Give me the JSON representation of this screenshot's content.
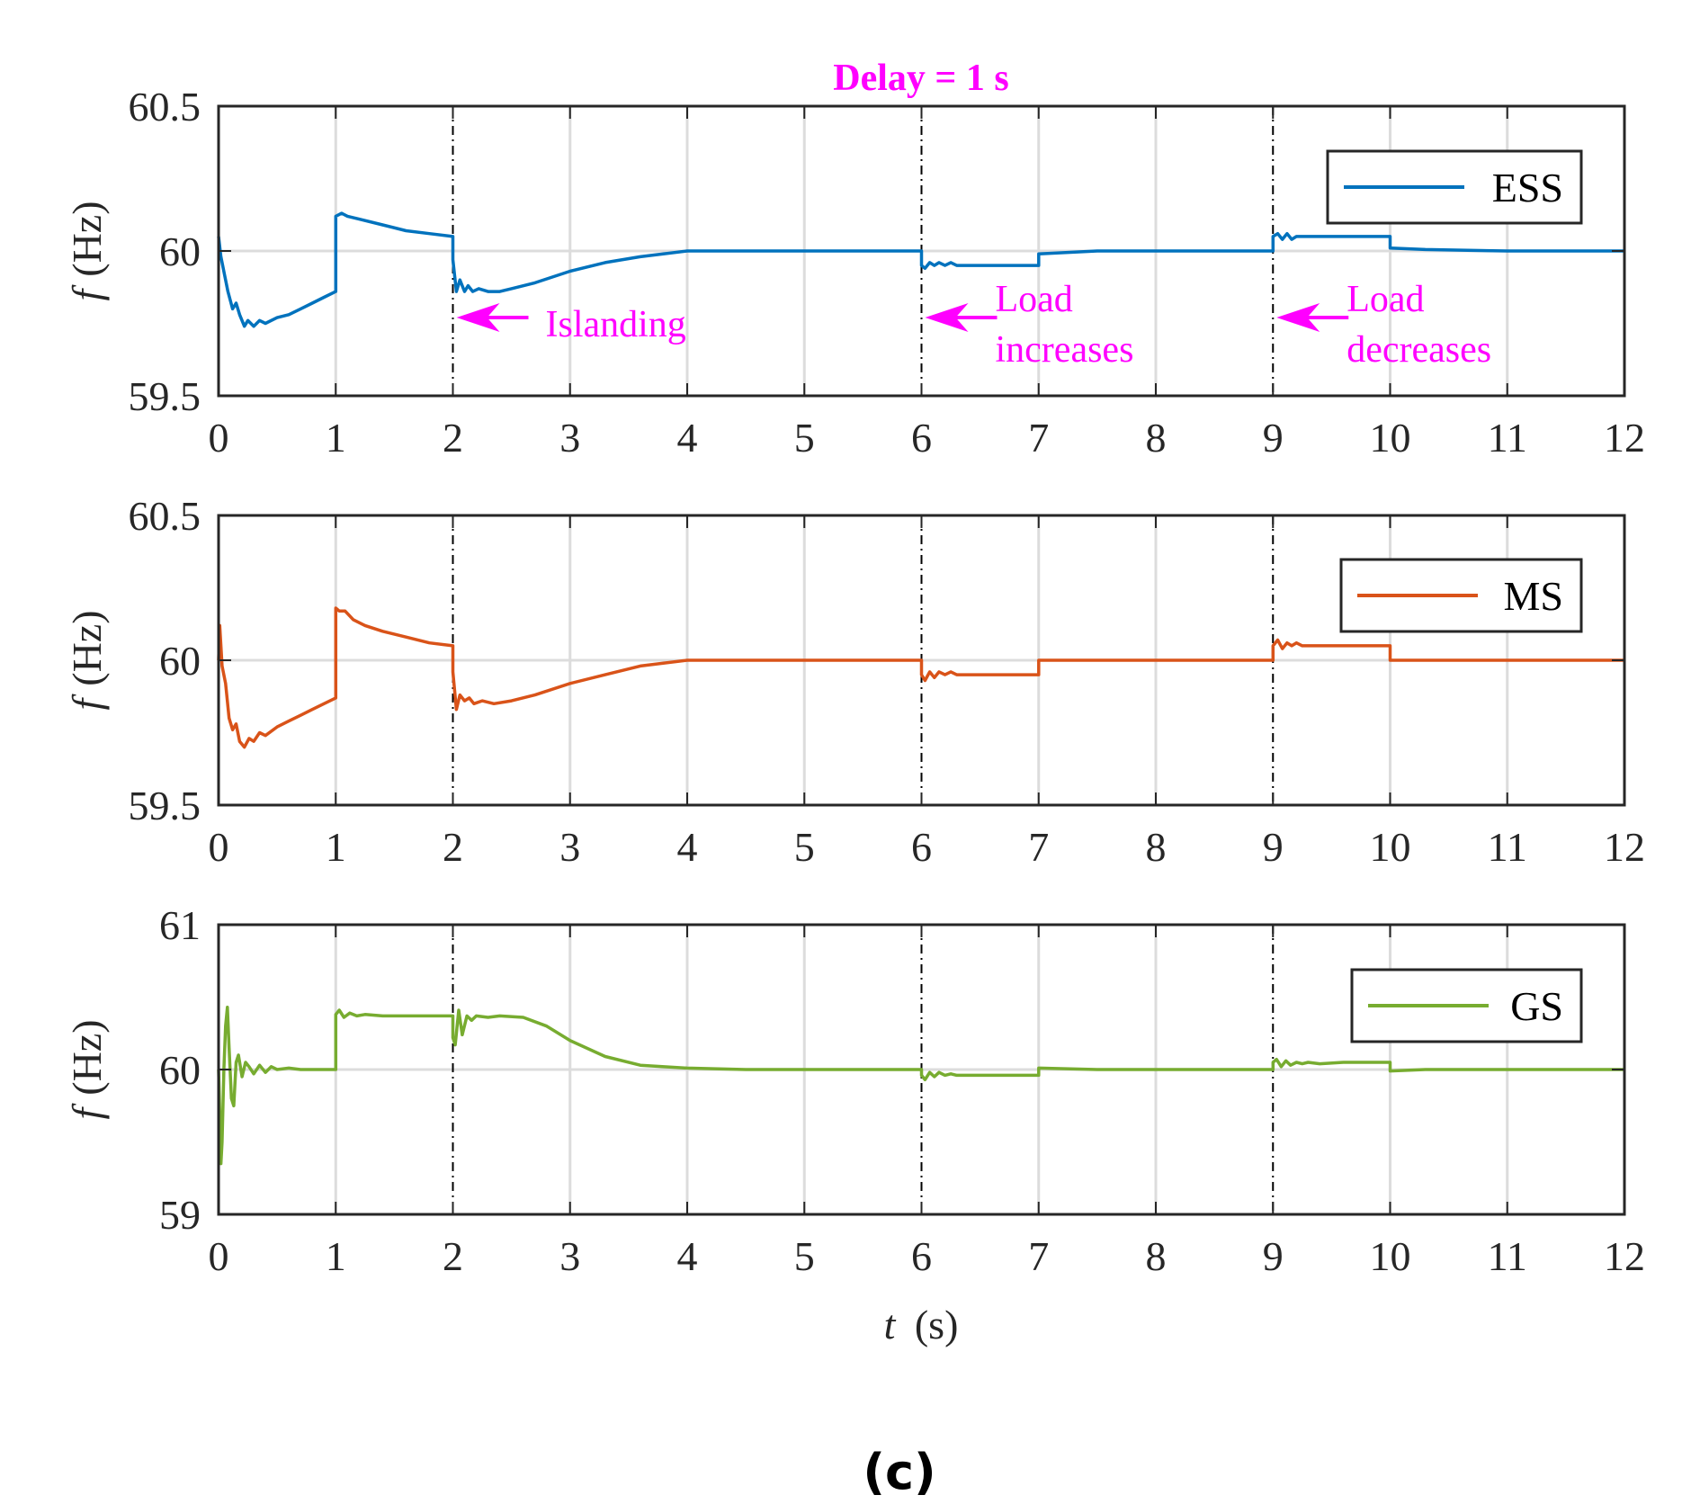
{
  "chart_data": [
    {
      "type": "line",
      "title": "Delay = 1 s",
      "xlabel": "",
      "ylabel_italic": "f",
      "ylabel_unit": "(Hz)",
      "xlim": [
        0,
        12
      ],
      "ylim": [
        59.5,
        60.5
      ],
      "xticks": [
        "0",
        "1",
        "2",
        "3",
        "4",
        "5",
        "6",
        "7",
        "8",
        "9",
        "10",
        "11",
        "12"
      ],
      "yticks": [
        "59.5",
        "60",
        "60.5"
      ],
      "ytick_values": [
        59.5,
        60,
        60.5
      ],
      "event_lines": [
        2,
        6,
        9
      ],
      "grid": true,
      "legend": "top-right",
      "series": [
        {
          "name": "ESS",
          "color": "#0072BD",
          "x": [
            0,
            0.02,
            0.05,
            0.08,
            0.12,
            0.15,
            0.18,
            0.22,
            0.25,
            0.3,
            0.35,
            0.4,
            0.5,
            0.6,
            0.7,
            0.8,
            0.9,
            1.0,
            1.0,
            1.05,
            1.1,
            1.2,
            1.4,
            1.6,
            1.8,
            2.0,
            2.0,
            2.03,
            2.06,
            2.1,
            2.13,
            2.17,
            2.22,
            2.3,
            2.4,
            2.5,
            2.7,
            3.0,
            3.3,
            3.6,
            4.0,
            4.5,
            5.0,
            6.0,
            6.0,
            6.03,
            6.07,
            6.11,
            6.15,
            6.2,
            6.25,
            6.3,
            6.4,
            6.6,
            7.0,
            7.0,
            7.5,
            8.0,
            9.0,
            9.0,
            9.04,
            9.08,
            9.12,
            9.16,
            9.2,
            9.25,
            9.3,
            9.4,
            9.6,
            10.0,
            10.0,
            10.3,
            11.0,
            12.0
          ],
          "y": [
            60.05,
            59.98,
            59.92,
            59.86,
            59.8,
            59.82,
            59.78,
            59.74,
            59.76,
            59.74,
            59.76,
            59.75,
            59.77,
            59.78,
            59.8,
            59.82,
            59.84,
            59.86,
            60.12,
            60.13,
            60.12,
            60.11,
            60.09,
            60.07,
            60.06,
            60.05,
            59.97,
            59.86,
            59.9,
            59.86,
            59.88,
            59.86,
            59.87,
            59.86,
            59.86,
            59.87,
            59.89,
            59.93,
            59.96,
            59.98,
            60.0,
            60.0,
            60.0,
            60.0,
            59.95,
            59.94,
            59.96,
            59.95,
            59.96,
            59.95,
            59.96,
            59.95,
            59.95,
            59.95,
            59.95,
            59.99,
            60.0,
            60.0,
            60.0,
            60.05,
            60.06,
            60.04,
            60.06,
            60.04,
            60.05,
            60.05,
            60.05,
            60.05,
            60.05,
            60.05,
            60.01,
            60.005,
            60.0,
            60.0
          ]
        }
      ],
      "annotations": [
        {
          "text": "Islanding",
          "x": 2
        },
        {
          "text": "Load",
          "text2": "increases",
          "x": 6
        },
        {
          "text": "Load",
          "text2": "decreases",
          "x": 9
        }
      ]
    },
    {
      "type": "line",
      "xlabel": "",
      "ylabel_italic": "f",
      "ylabel_unit": "(Hz)",
      "xlim": [
        0,
        12
      ],
      "ylim": [
        59.5,
        60.5
      ],
      "xticks": [
        "0",
        "1",
        "2",
        "3",
        "4",
        "5",
        "6",
        "7",
        "8",
        "9",
        "10",
        "11",
        "12"
      ],
      "yticks": [
        "59.5",
        "60",
        "60.5"
      ],
      "ytick_values": [
        59.5,
        60,
        60.5
      ],
      "event_lines": [
        2,
        6,
        9
      ],
      "grid": true,
      "legend": "top-right",
      "series": [
        {
          "name": "MS",
          "color": "#D95319",
          "x": [
            0,
            0.01,
            0.03,
            0.06,
            0.09,
            0.12,
            0.15,
            0.18,
            0.22,
            0.26,
            0.3,
            0.35,
            0.4,
            0.5,
            0.6,
            0.7,
            0.8,
            0.9,
            1.0,
            1.0,
            1.03,
            1.08,
            1.15,
            1.25,
            1.4,
            1.6,
            1.8,
            2.0,
            2.0,
            2.03,
            2.06,
            2.1,
            2.14,
            2.18,
            2.25,
            2.35,
            2.5,
            2.7,
            3.0,
            3.3,
            3.6,
            4.0,
            4.5,
            5.0,
            6.0,
            6.0,
            6.03,
            6.07,
            6.11,
            6.15,
            6.2,
            6.25,
            6.3,
            6.4,
            6.6,
            7.0,
            7.0,
            7.5,
            8.0,
            9.0,
            9.0,
            9.04,
            9.08,
            9.12,
            9.16,
            9.2,
            9.25,
            9.3,
            9.4,
            9.6,
            10.0,
            10.0,
            10.3,
            11.0,
            12.0
          ],
          "y": [
            60.0,
            60.12,
            59.98,
            59.92,
            59.8,
            59.76,
            59.78,
            59.72,
            59.7,
            59.73,
            59.72,
            59.75,
            59.74,
            59.77,
            59.79,
            59.81,
            59.83,
            59.85,
            59.87,
            60.18,
            60.17,
            60.17,
            60.14,
            60.12,
            60.1,
            60.08,
            60.06,
            60.05,
            59.96,
            59.83,
            59.88,
            59.86,
            59.87,
            59.85,
            59.86,
            59.85,
            59.86,
            59.88,
            59.92,
            59.95,
            59.98,
            60.0,
            60.0,
            60.0,
            60.0,
            59.95,
            59.93,
            59.96,
            59.94,
            59.96,
            59.95,
            59.96,
            59.95,
            59.95,
            59.95,
            59.95,
            60.0,
            60.0,
            60.0,
            60.0,
            60.05,
            60.07,
            60.04,
            60.06,
            60.05,
            60.06,
            60.05,
            60.05,
            60.05,
            60.05,
            60.05,
            60.0,
            60.0,
            60.0,
            60.0
          ]
        }
      ]
    },
    {
      "type": "line",
      "xlabel_italic": "t",
      "xlabel_unit": "(s)",
      "ylabel_italic": "f",
      "ylabel_unit": "(Hz)",
      "xlim": [
        0,
        12
      ],
      "ylim": [
        59,
        61
      ],
      "xticks": [
        "0",
        "1",
        "2",
        "3",
        "4",
        "5",
        "6",
        "7",
        "8",
        "9",
        "10",
        "11",
        "12"
      ],
      "yticks": [
        "59",
        "60",
        "61"
      ],
      "ytick_values": [
        59,
        60,
        61
      ],
      "event_lines": [
        2,
        6,
        9
      ],
      "grid": true,
      "legend": "top-right",
      "series": [
        {
          "name": "GS",
          "color": "#77AC30",
          "x": [
            0,
            0.01,
            0.02,
            0.03,
            0.045,
            0.06,
            0.075,
            0.09,
            0.11,
            0.13,
            0.15,
            0.17,
            0.2,
            0.23,
            0.26,
            0.3,
            0.35,
            0.4,
            0.45,
            0.5,
            0.6,
            0.7,
            0.8,
            1.0,
            1.0,
            1.03,
            1.07,
            1.12,
            1.18,
            1.25,
            1.4,
            1.6,
            2.0,
            2.0,
            2.02,
            2.05,
            2.08,
            2.12,
            2.16,
            2.2,
            2.3,
            2.4,
            2.6,
            2.8,
            3.0,
            3.3,
            3.6,
            4.0,
            4.5,
            5.0,
            6.0,
            6.0,
            6.03,
            6.07,
            6.11,
            6.15,
            6.2,
            6.25,
            6.3,
            6.4,
            6.6,
            7.0,
            7.0,
            7.5,
            8.0,
            9.0,
            9.0,
            9.03,
            9.07,
            9.11,
            9.15,
            9.2,
            9.25,
            9.3,
            9.4,
            9.6,
            10.0,
            10.0,
            10.3,
            11.0,
            12.0
          ],
          "y": [
            60.0,
            59.7,
            59.35,
            59.5,
            60.0,
            60.3,
            60.43,
            60.15,
            59.8,
            59.75,
            60.05,
            60.1,
            59.95,
            60.05,
            60.02,
            59.97,
            60.03,
            59.98,
            60.02,
            60.0,
            60.01,
            60.0,
            60.0,
            60.0,
            60.38,
            60.41,
            60.36,
            60.39,
            60.37,
            60.38,
            60.37,
            60.37,
            60.37,
            60.22,
            60.17,
            60.41,
            60.24,
            60.37,
            60.34,
            60.37,
            60.36,
            60.37,
            60.36,
            60.3,
            60.2,
            60.09,
            60.03,
            60.01,
            60.0,
            60.0,
            60.0,
            59.96,
            59.93,
            59.98,
            59.95,
            59.98,
            59.96,
            59.97,
            59.96,
            59.96,
            59.96,
            59.96,
            60.01,
            60.0,
            60.0,
            60.0,
            60.05,
            60.07,
            60.02,
            60.06,
            60.03,
            60.05,
            60.04,
            60.05,
            60.04,
            60.05,
            60.05,
            59.99,
            60.0,
            60.0,
            60.0
          ]
        }
      ]
    }
  ],
  "caption": "(c)"
}
